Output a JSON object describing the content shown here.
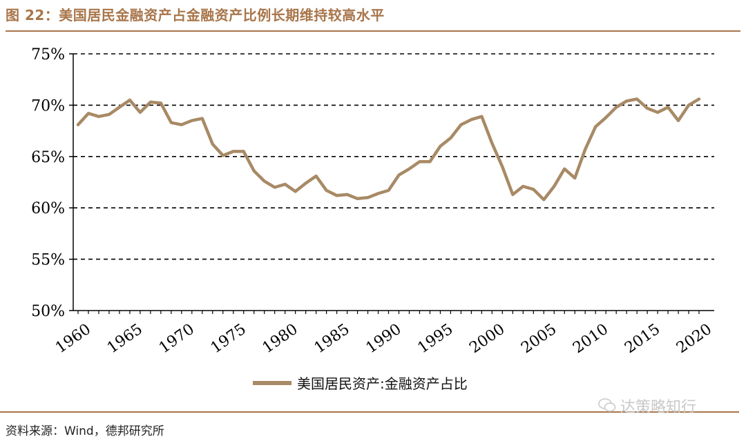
{
  "figure": {
    "title": "图 22：美国居民金融资产占金融资产比例长期维持较高水平",
    "source": "资料来源：Wind，德邦研究所",
    "watermark": "达策略知行"
  },
  "colors": {
    "accent": "#a8754a",
    "line": "#a88a66"
  },
  "chart_data": {
    "type": "line",
    "title": "",
    "xlabel": "",
    "ylabel": "",
    "ylim": [
      50,
      75
    ],
    "xlim": [
      1960,
      2021
    ],
    "yticks": [
      "50%",
      "55%",
      "60%",
      "65%",
      "70%",
      "75%"
    ],
    "ytick_values": [
      50,
      55,
      60,
      65,
      70,
      75
    ],
    "xticks": [
      "1960",
      "1965",
      "1970",
      "1975",
      "1980",
      "1985",
      "1990",
      "1995",
      "2000",
      "2005",
      "2010",
      "2015",
      "2020"
    ],
    "xtick_values": [
      1960,
      1965,
      1970,
      1975,
      1980,
      1985,
      1990,
      1995,
      2000,
      2005,
      2010,
      2015,
      2020
    ],
    "grid": "horizontal dashed",
    "legend_position": "bottom",
    "series": [
      {
        "name": "美国居民资产:金融资产占比",
        "x": [
          1960,
          1961,
          1962,
          1963,
          1964,
          1965,
          1966,
          1967,
          1968,
          1969,
          1970,
          1971,
          1972,
          1973,
          1974,
          1975,
          1976,
          1977,
          1978,
          1979,
          1980,
          1981,
          1982,
          1983,
          1984,
          1985,
          1986,
          1987,
          1988,
          1989,
          1990,
          1991,
          1992,
          1993,
          1994,
          1995,
          1996,
          1997,
          1998,
          1999,
          2000,
          2001,
          2002,
          2003,
          2004,
          2005,
          2006,
          2007,
          2008,
          2009,
          2010,
          2011,
          2012,
          2013,
          2014,
          2015,
          2016,
          2017,
          2018,
          2019,
          2020
        ],
        "values": [
          68.1,
          69.2,
          68.9,
          69.1,
          69.8,
          70.5,
          69.3,
          70.3,
          70.2,
          68.3,
          68.1,
          68.5,
          68.7,
          66.2,
          65.1,
          65.5,
          65.5,
          63.6,
          62.6,
          62.0,
          62.3,
          61.6,
          62.4,
          63.1,
          61.7,
          61.2,
          61.3,
          60.9,
          61.0,
          61.4,
          61.7,
          63.2,
          63.8,
          64.5,
          64.5,
          66.0,
          66.8,
          68.1,
          68.6,
          68.9,
          66.3,
          64.0,
          61.3,
          62.1,
          61.8,
          60.8,
          62.1,
          63.8,
          62.9,
          65.7,
          67.9,
          68.8,
          69.8,
          70.4,
          70.6,
          69.7,
          69.3,
          69.8,
          68.5,
          70.0,
          70.6
        ]
      }
    ]
  }
}
